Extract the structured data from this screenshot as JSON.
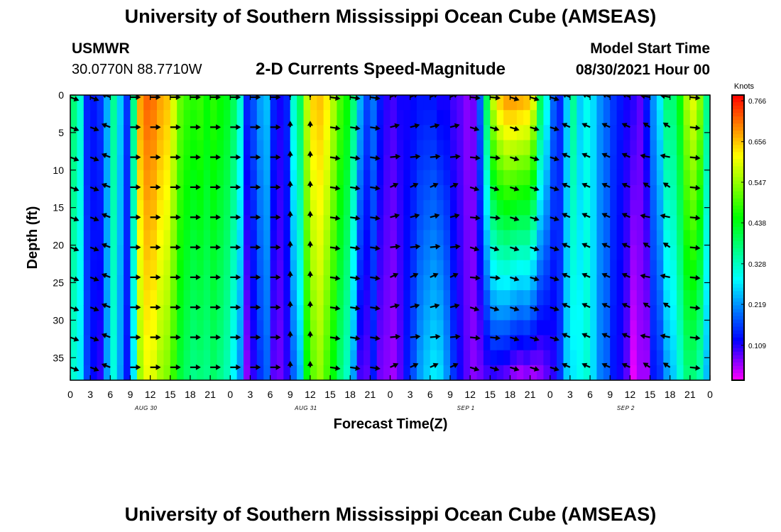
{
  "header": {
    "title_top": "University of Southern Mississippi Ocean Cube (AMSEAS)",
    "title_bottom": "University of Southern Mississippi Ocean Cube (AMSEAS)",
    "station": "USMWR",
    "coords": "30.0770N  88.7710W",
    "chart_title": "2-D Currents Speed-Magnitude",
    "model_start_label": "Model Start Time",
    "model_start_value": "08/30/2021 Hour 00"
  },
  "chart_data": {
    "type": "heatmap",
    "title": "2-D Currents Speed-Magnitude",
    "xlabel": "Forecast Time(Z)",
    "ylabel": "Depth (ft)",
    "x_range_hours": [
      0,
      96
    ],
    "ylim": [
      0,
      38
    ],
    "y_ticks": [
      0,
      5,
      10,
      15,
      20,
      25,
      30,
      35
    ],
    "x_tick_labels": [
      "0",
      "3",
      "6",
      "9",
      "12",
      "15",
      "18",
      "21",
      "0",
      "3",
      "6",
      "9",
      "12",
      "15",
      "18",
      "21",
      "0",
      "3",
      "6",
      "9",
      "12",
      "15",
      "18",
      "21",
      "0",
      "3",
      "6",
      "9",
      "12",
      "15",
      "18",
      "21",
      "0"
    ],
    "date_labels": [
      {
        "text": "AUG 30",
        "hour": 12
      },
      {
        "text": "AUG 31",
        "hour": 36
      },
      {
        "text": "SEP 1",
        "hour": 60
      },
      {
        "text": "SEP 2",
        "hour": 84
      }
    ],
    "colorbar": {
      "units": "Knots",
      "min": 0.0,
      "max": 0.766,
      "tick_labels": [
        "0.766",
        "0.656",
        "0.547",
        "0.438",
        "0.328",
        "0.219",
        "0.109"
      ],
      "tick_values": [
        0.766,
        0.656,
        0.547,
        0.438,
        0.328,
        0.219,
        0.109
      ]
    },
    "speed_profile_knots": {
      "hours": [
        0,
        1,
        2,
        3,
        4,
        5,
        6,
        7,
        8,
        9,
        10,
        11,
        12,
        13,
        14,
        15,
        16,
        17,
        18,
        19,
        20,
        21,
        22,
        23,
        24,
        25,
        26,
        27,
        28,
        29,
        30,
        31,
        32,
        33,
        34,
        35,
        36,
        37,
        38,
        39,
        40,
        41,
        42,
        43,
        44,
        45,
        46,
        47,
        48,
        49,
        50,
        51,
        52,
        53,
        54,
        55,
        56,
        57,
        58,
        59,
        60,
        61,
        62,
        63,
        64,
        65,
        66,
        67,
        68,
        69,
        70,
        71,
        72,
        73,
        74,
        75,
        76,
        77,
        78,
        79,
        80,
        81,
        82,
        83,
        84,
        85,
        86,
        87,
        88,
        89,
        90,
        91,
        92,
        93,
        94,
        95,
        96
      ],
      "surface": [
        0.36,
        0.3,
        0.13,
        0.12,
        0.14,
        0.22,
        0.34,
        0.24,
        0.14,
        0.35,
        0.66,
        0.7,
        0.69,
        0.66,
        0.64,
        0.58,
        0.5,
        0.47,
        0.46,
        0.47,
        0.44,
        0.46,
        0.44,
        0.42,
        0.38,
        0.3,
        0.13,
        0.16,
        0.21,
        0.23,
        0.13,
        0.1,
        0.13,
        0.3,
        0.38,
        0.56,
        0.63,
        0.64,
        0.61,
        0.55,
        0.48,
        0.44,
        0.36,
        0.22,
        0.15,
        0.18,
        0.12,
        0.09,
        0.08,
        0.1,
        0.1,
        0.11,
        0.12,
        0.12,
        0.12,
        0.1,
        0.1,
        0.08,
        0.07,
        0.05,
        0.06,
        0.17,
        0.38,
        0.56,
        0.63,
        0.66,
        0.66,
        0.65,
        0.64,
        0.58,
        0.38,
        0.28,
        0.17,
        0.13,
        0.24,
        0.34,
        0.24,
        0.28,
        0.25,
        0.2,
        0.17,
        0.14,
        0.12,
        0.1,
        0.09,
        0.07,
        0.12,
        0.2,
        0.26,
        0.36,
        0.36,
        0.43,
        0.54,
        0.58,
        0.52,
        0.35,
        0.3
      ],
      "bottom": [
        0.3,
        0.26,
        0.15,
        0.11,
        0.09,
        0.21,
        0.29,
        0.21,
        0.12,
        0.26,
        0.54,
        0.59,
        0.58,
        0.54,
        0.52,
        0.47,
        0.4,
        0.37,
        0.35,
        0.36,
        0.35,
        0.37,
        0.35,
        0.32,
        0.27,
        0.2,
        0.05,
        0.09,
        0.14,
        0.17,
        0.07,
        0.06,
        0.09,
        0.17,
        0.23,
        0.43,
        0.5,
        0.53,
        0.48,
        0.43,
        0.36,
        0.31,
        0.21,
        0.08,
        0.07,
        0.12,
        0.06,
        0.05,
        0.04,
        0.07,
        0.12,
        0.16,
        0.21,
        0.24,
        0.26,
        0.25,
        0.2,
        0.14,
        0.1,
        0.07,
        0.05,
        0.06,
        0.08,
        0.09,
        0.08,
        0.07,
        0.05,
        0.04,
        0.05,
        0.04,
        0.05,
        0.07,
        0.09,
        0.14,
        0.24,
        0.26,
        0.28,
        0.3,
        0.25,
        0.19,
        0.17,
        0.12,
        0.1,
        0.07,
        0.01,
        0.04,
        0.04,
        0.12,
        0.14,
        0.21,
        0.24,
        0.3,
        0.36,
        0.36,
        0.32,
        0.23,
        0.21
      ]
    },
    "arrow_directions_deg_note": "vectors drawn every 3 h at depths 0-36 ft"
  }
}
